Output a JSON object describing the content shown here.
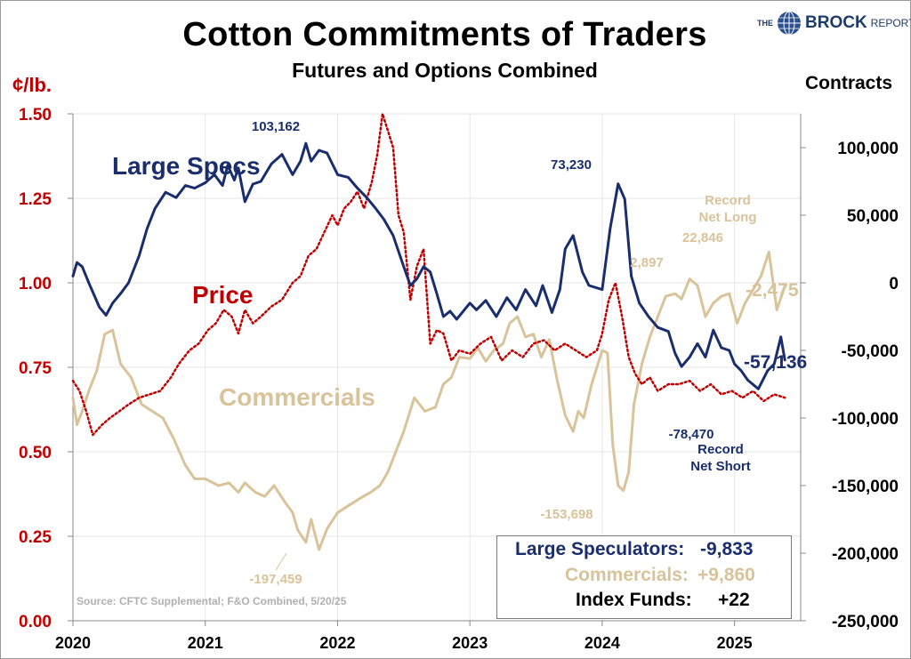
{
  "header": {
    "title": "Cotton Commitments of Traders",
    "subtitle": "Futures and Options Combined",
    "logo_the": "THE",
    "logo_brock": "BROCK",
    "logo_report": "REPORT"
  },
  "colors": {
    "large_specs": "#1a2e6e",
    "commercials": "#d9c39a",
    "price": "#c00000",
    "grid": "#e6e6e6"
  },
  "footer": {
    "source": "Source: CFTC Supplemental; F&O Combined, 5/20/25"
  },
  "legend_box": {
    "rows": [
      {
        "label": "Large Speculators:",
        "value": "-9,833"
      },
      {
        "label": "Commercials:",
        "value": "+9,860"
      },
      {
        "label": "Index Funds:",
        "value": "+22"
      }
    ]
  },
  "chart_data": {
    "type": "line",
    "x_axis": {
      "ticks": [
        "2020",
        "2021",
        "2022",
        "2023",
        "2024",
        "2025"
      ],
      "range": [
        2020.0,
        2025.5
      ]
    },
    "y_left": {
      "label": "¢/lb.",
      "range": [
        0.0,
        1.5
      ],
      "ticks": [
        "0.00",
        "0.25",
        "0.50",
        "0.75",
        "1.00",
        "1.25",
        "1.50"
      ]
    },
    "y_right": {
      "label": "Contracts",
      "range": [
        -250000,
        125000
      ],
      "ticks": [
        "-250,000",
        "-200,000",
        "-150,000",
        "-100,000",
        "-50,000",
        "0",
        "50,000",
        "100,000"
      ]
    },
    "grid": true,
    "series": [
      {
        "name": "Large Specs",
        "axis": "right",
        "x": [
          2020.0,
          2020.03,
          2020.07,
          2020.12,
          2020.2,
          2020.25,
          2020.3,
          2020.36,
          2020.42,
          2020.5,
          2020.56,
          2020.62,
          2020.7,
          2020.78,
          2020.85,
          2020.92,
          2021.0,
          2021.07,
          2021.13,
          2021.17,
          2021.22,
          2021.25,
          2021.3,
          2021.36,
          2021.42,
          2021.5,
          2021.58,
          2021.66,
          2021.72,
          2021.76,
          2021.8,
          2021.86,
          2021.92,
          2022.0,
          2022.08,
          2022.15,
          2022.22,
          2022.28,
          2022.35,
          2022.42,
          2022.5,
          2022.55,
          2022.6,
          2022.65,
          2022.7,
          2022.75,
          2022.8,
          2022.85,
          2022.9,
          2023.0,
          2023.05,
          2023.12,
          2023.2,
          2023.28,
          2023.35,
          2023.42,
          2023.5,
          2023.55,
          2023.62,
          2023.68,
          2023.72,
          2023.78,
          2023.85,
          2023.9,
          2024.0,
          2024.06,
          2024.12,
          2024.17,
          2024.22,
          2024.28,
          2024.35,
          2024.42,
          2024.5,
          2024.55,
          2024.6,
          2024.66,
          2024.72,
          2024.78,
          2024.84,
          2024.9,
          2024.96,
          2025.0,
          2025.05,
          2025.1,
          2025.18,
          2025.25,
          2025.3,
          2025.35,
          2025.38
        ],
        "y": [
          5000,
          15000,
          12000,
          0,
          -18000,
          -24000,
          -15000,
          -8000,
          0,
          20000,
          40000,
          55000,
          67000,
          63000,
          72000,
          70000,
          74000,
          80000,
          72000,
          87000,
          76000,
          85000,
          60000,
          73000,
          75000,
          88000,
          95000,
          80000,
          90000,
          103162,
          90000,
          98000,
          96000,
          80000,
          78000,
          70000,
          63000,
          56000,
          47000,
          35000,
          12000,
          -2000,
          3000,
          12000,
          8000,
          -8000,
          -25000,
          -21000,
          -27000,
          -15000,
          -20000,
          -13000,
          -25000,
          -11000,
          -20000,
          -5000,
          -17000,
          -2000,
          -22000,
          -5000,
          25000,
          35000,
          8000,
          -2000,
          -5000,
          40000,
          73230,
          62000,
          5000,
          -15000,
          -25000,
          -33000,
          -36000,
          -52000,
          -62000,
          -55000,
          -45000,
          -55000,
          -35000,
          -48000,
          -50000,
          -60000,
          -65000,
          -72000,
          -78470,
          -65000,
          -60000,
          -40000,
          -57136
        ]
      },
      {
        "name": "Commercials",
        "axis": "right",
        "x": [
          2020.0,
          2020.03,
          2020.07,
          2020.12,
          2020.18,
          2020.24,
          2020.3,
          2020.36,
          2020.44,
          2020.52,
          2020.6,
          2020.68,
          2020.76,
          2020.85,
          2020.92,
          2021.0,
          2021.1,
          2021.18,
          2021.25,
          2021.3,
          2021.38,
          2021.45,
          2021.52,
          2021.6,
          2021.66,
          2021.7,
          2021.76,
          2021.8,
          2021.86,
          2021.92,
          2022.0,
          2022.08,
          2022.16,
          2022.25,
          2022.32,
          2022.38,
          2022.44,
          2022.5,
          2022.58,
          2022.66,
          2022.74,
          2022.8,
          2022.86,
          2022.92,
          2023.0,
          2023.06,
          2023.12,
          2023.18,
          2023.25,
          2023.3,
          2023.36,
          2023.42,
          2023.48,
          2023.54,
          2023.6,
          2023.66,
          2023.72,
          2023.78,
          2023.82,
          2023.86,
          2023.92,
          2024.0,
          2024.04,
          2024.08,
          2024.12,
          2024.16,
          2024.2,
          2024.24,
          2024.3,
          2024.36,
          2024.42,
          2024.48,
          2024.55,
          2024.6,
          2024.66,
          2024.72,
          2024.78,
          2024.84,
          2024.9,
          2024.96,
          2025.02,
          2025.08,
          2025.14,
          2025.2,
          2025.26,
          2025.32,
          2025.38
        ],
        "y": [
          -85000,
          -105000,
          -95000,
          -80000,
          -65000,
          -38000,
          -35000,
          -60000,
          -70000,
          -90000,
          -95000,
          -100000,
          -115000,
          -135000,
          -145000,
          -145000,
          -150000,
          -148000,
          -155000,
          -148000,
          -155000,
          -158000,
          -150000,
          -162000,
          -170000,
          -183000,
          -192000,
          -175000,
          -197459,
          -182000,
          -170000,
          -165000,
          -160000,
          -155000,
          -150000,
          -140000,
          -125000,
          -110000,
          -85000,
          -95000,
          -92000,
          -75000,
          -70000,
          -55000,
          -56000,
          -48000,
          -58000,
          -50000,
          -45000,
          -30000,
          -25000,
          -40000,
          -38000,
          -55000,
          -42000,
          -72000,
          -98000,
          -110000,
          -95000,
          -100000,
          -75000,
          -50000,
          -52000,
          -120000,
          -150000,
          -153698,
          -140000,
          -90000,
          -60000,
          -40000,
          -25000,
          -10000,
          -8000,
          -12000,
          2897,
          -2000,
          -25000,
          -15000,
          -10000,
          -8000,
          -30000,
          -15000,
          -5000,
          5000,
          22846,
          -20000,
          -2475
        ]
      },
      {
        "name": "Price",
        "axis": "left",
        "style": "dotted",
        "x": [
          2020.0,
          2020.05,
          2020.1,
          2020.15,
          2020.22,
          2020.28,
          2020.35,
          2020.42,
          2020.5,
          2020.58,
          2020.66,
          2020.74,
          2020.8,
          2020.88,
          2020.95,
          2021.02,
          2021.08,
          2021.14,
          2021.2,
          2021.25,
          2021.3,
          2021.36,
          2021.42,
          2021.5,
          2021.58,
          2021.66,
          2021.72,
          2021.78,
          2021.84,
          2021.9,
          2021.96,
          2022.0,
          2022.05,
          2022.1,
          2022.15,
          2022.2,
          2022.26,
          2022.3,
          2022.34,
          2022.38,
          2022.42,
          2022.46,
          2022.5,
          2022.55,
          2022.6,
          2022.65,
          2022.7,
          2022.75,
          2022.8,
          2022.86,
          2022.92,
          2023.0,
          2023.08,
          2023.16,
          2023.24,
          2023.32,
          2023.4,
          2023.48,
          2023.56,
          2023.64,
          2023.72,
          2023.8,
          2023.88,
          2023.96,
          2024.0,
          2024.05,
          2024.1,
          2024.15,
          2024.2,
          2024.25,
          2024.3,
          2024.36,
          2024.42,
          2024.5,
          2024.58,
          2024.66,
          2024.74,
          2024.82,
          2024.9,
          2024.98,
          2025.06,
          2025.14,
          2025.22,
          2025.3,
          2025.38
        ],
        "y": [
          0.71,
          0.68,
          0.62,
          0.55,
          0.58,
          0.6,
          0.62,
          0.64,
          0.66,
          0.67,
          0.68,
          0.72,
          0.76,
          0.8,
          0.82,
          0.86,
          0.88,
          0.92,
          0.9,
          0.85,
          0.92,
          0.88,
          0.9,
          0.93,
          0.95,
          1.0,
          1.02,
          1.08,
          1.1,
          1.15,
          1.2,
          1.17,
          1.22,
          1.24,
          1.27,
          1.22,
          1.3,
          1.38,
          1.5,
          1.45,
          1.4,
          1.2,
          1.15,
          0.95,
          1.05,
          1.1,
          0.82,
          0.86,
          0.85,
          0.77,
          0.8,
          0.79,
          0.82,
          0.84,
          0.77,
          0.8,
          0.78,
          0.82,
          0.83,
          0.8,
          0.82,
          0.8,
          0.78,
          0.8,
          0.85,
          0.95,
          1.0,
          0.9,
          0.78,
          0.73,
          0.7,
          0.72,
          0.68,
          0.7,
          0.7,
          0.71,
          0.68,
          0.7,
          0.67,
          0.68,
          0.66,
          0.68,
          0.65,
          0.67,
          0.66
        ]
      }
    ],
    "annotations": {
      "ls_label": "Large Specs",
      "price_label": "Price",
      "comm_label": "Commercials",
      "ls_max": "103,162",
      "ls_2024": "73,230",
      "ls_last": "-57,136",
      "ls_min": "-78,470",
      "record_net_short": [
        "Record",
        "Net Short"
      ],
      "comm_min": "-197,459",
      "comm_2024": "-153,698",
      "comm_2897": "2,897",
      "comm_22846": "22,846",
      "record_net_long": [
        "Record",
        "Net Long"
      ],
      "comm_last": "-2,475"
    }
  }
}
